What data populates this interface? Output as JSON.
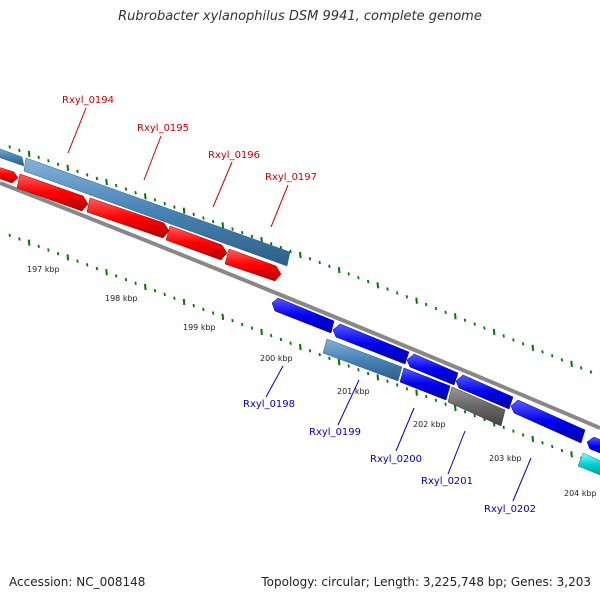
{
  "title": "Rubrobacter xylanophilus DSM 9941, complete genome",
  "footer": {
    "accession": "Accession: NC_008148",
    "topology": "Topology: circular; Length: 3,225,748 bp; Genes: 3,203"
  },
  "colors": {
    "forward_gene": "#ff0000",
    "reverse_gene": "#0000ee",
    "cds_bar": "#4682b4",
    "pseudo_gene": "#666666",
    "rna_gene": "#00cccc",
    "backbone": "#888888",
    "tick": "#007700",
    "label_top": "#cc0000",
    "label_bottom": "#0000bb"
  },
  "kbp_labels": [
    "197 kbp",
    "198 kbp",
    "199 kbp",
    "200 kbp",
    "201 kbp",
    "202 kbp",
    "203 kbp",
    "204 kbp"
  ],
  "top_genes": [
    "Rxyl_0194",
    "Rxyl_0195",
    "Rxyl_0196",
    "Rxyl_0197"
  ],
  "bottom_genes": [
    "Rxyl_0198",
    "Rxyl_0199",
    "Rxyl_0200",
    "Rxyl_0201",
    "Rxyl_0202"
  ]
}
